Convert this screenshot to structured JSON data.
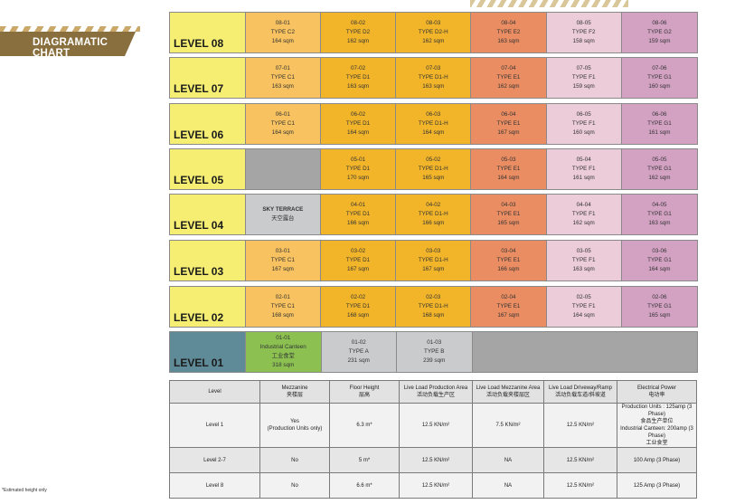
{
  "title": "DIAGRAMATIC CHART",
  "levels": [
    {
      "label": "LEVEL 08",
      "units": [
        {
          "code": "08-01",
          "type": "TYPE C2",
          "area": "164 sqm"
        },
        {
          "code": "08-02",
          "type": "TYPE D2",
          "area": "162 sqm"
        },
        {
          "code": "08-03",
          "type": "TYPE D2-H",
          "area": "162 sqm"
        },
        {
          "code": "08-04",
          "type": "TYPE E2",
          "area": "163 sqm"
        },
        {
          "code": "08-05",
          "type": "TYPE F2",
          "area": "158 sqm"
        },
        {
          "code": "08-06",
          "type": "TYPE G2",
          "area": "159 sqm"
        }
      ]
    },
    {
      "label": "LEVEL 07",
      "units": [
        {
          "code": "07-01",
          "type": "TYPE C1",
          "area": "163 sqm"
        },
        {
          "code": "07-02",
          "type": "TYPE D1",
          "area": "163 sqm"
        },
        {
          "code": "07-03",
          "type": "TYPE D1-H",
          "area": "163 sqm"
        },
        {
          "code": "07-04",
          "type": "TYPE E1",
          "area": "162 sqm"
        },
        {
          "code": "07-05",
          "type": "TYPE F1",
          "area": "159 sqm"
        },
        {
          "code": "07-06",
          "type": "TYPE G1",
          "area": "160 sqm"
        }
      ]
    },
    {
      "label": "LEVEL 06",
      "units": [
        {
          "code": "06-01",
          "type": "TYPE C1",
          "area": "164 sqm"
        },
        {
          "code": "06-02",
          "type": "TYPE D1",
          "area": "164 sqm"
        },
        {
          "code": "06-03",
          "type": "TYPE D1-H",
          "area": "164 sqm"
        },
        {
          "code": "06-04",
          "type": "TYPE E1",
          "area": "167 sqm"
        },
        {
          "code": "06-05",
          "type": "TYPE F1",
          "area": "160 sqm"
        },
        {
          "code": "06-06",
          "type": "TYPE G1",
          "area": "161 sqm"
        }
      ]
    },
    {
      "label": "LEVEL 05",
      "units": [
        {
          "code": "",
          "type": "",
          "area": ""
        },
        {
          "code": "05-01",
          "type": "TYPE D1",
          "area": "170 sqm"
        },
        {
          "code": "05-02",
          "type": "TYPE D1-H",
          "area": "165 sqm"
        },
        {
          "code": "05-03",
          "type": "TYPE E1",
          "area": "164 sqm"
        },
        {
          "code": "05-04",
          "type": "TYPE F1",
          "area": "161 sqm"
        },
        {
          "code": "05-05",
          "type": "TYPE G1",
          "area": "162 sqm"
        }
      ]
    },
    {
      "label": "LEVEL 04",
      "units": [
        {
          "code": "SKY TERRACE",
          "type": "天空露台",
          "area": ""
        },
        {
          "code": "04-01",
          "type": "TYPE D1",
          "area": "166 sqm"
        },
        {
          "code": "04-02",
          "type": "TYPE D1-H",
          "area": "166 sqm"
        },
        {
          "code": "04-03",
          "type": "TYPE E1",
          "area": "165 sqm"
        },
        {
          "code": "04-04",
          "type": "TYPE F1",
          "area": "162 sqm"
        },
        {
          "code": "04-05",
          "type": "TYPE G1",
          "area": "163 sqm"
        }
      ]
    },
    {
      "label": "LEVEL 03",
      "units": [
        {
          "code": "03-01",
          "type": "TYPE C1",
          "area": "167 sqm"
        },
        {
          "code": "03-02",
          "type": "TYPE D1",
          "area": "167 sqm"
        },
        {
          "code": "03-03",
          "type": "TYPE D1-H",
          "area": "167 sqm"
        },
        {
          "code": "03-04",
          "type": "TYPE E1",
          "area": "166 sqm"
        },
        {
          "code": "03-05",
          "type": "TYPE F1",
          "area": "163 sqm"
        },
        {
          "code": "03-06",
          "type": "TYPE G1",
          "area": "164 sqm"
        }
      ]
    },
    {
      "label": "LEVEL 02",
      "units": [
        {
          "code": "02-01",
          "type": "TYPE C1",
          "area": "168 sqm"
        },
        {
          "code": "02-02",
          "type": "TYPE D1",
          "area": "168 sqm"
        },
        {
          "code": "02-03",
          "type": "TYPE D1-H",
          "area": "168 sqm"
        },
        {
          "code": "02-04",
          "type": "TYPE E1",
          "area": "167 sqm"
        },
        {
          "code": "02-05",
          "type": "TYPE F1",
          "area": "164 sqm"
        },
        {
          "code": "02-06",
          "type": "TYPE G1",
          "area": "165 sqm"
        }
      ]
    },
    {
      "label": "LEVEL 01",
      "units": [
        {
          "code": "01-01",
          "type": "Industrial Canteen",
          "sub": "工业食堂",
          "area": "318 sqm"
        },
        {
          "code": "01-02",
          "type": "TYPE A",
          "area": "231 sqm"
        },
        {
          "code": "01-03",
          "type": "TYPE B",
          "area": "239 sqm"
        }
      ]
    }
  ],
  "spec_table": {
    "headers": [
      {
        "en": "Level",
        "zh": ""
      },
      {
        "en": "Mezzanine",
        "zh": "夹楼层"
      },
      {
        "en": "Floor Height",
        "zh": "层高"
      },
      {
        "en": "Live Load Production Area",
        "zh": "活动负载生产区"
      },
      {
        "en": "Live Load Mezzanine Area",
        "zh": "活动负载夹楼层区"
      },
      {
        "en": "Live Load Driveway/Ramp",
        "zh": "活动负载车道/斜坡道"
      },
      {
        "en": "Electrical Power",
        "zh": "电功率"
      }
    ],
    "rows": [
      {
        "level": "Level 1",
        "mezz": "Yes",
        "mezz_note": "(Production Units only)",
        "height": "6.3 m*",
        "prod": "12.5 KN/m²",
        "mezz_load": "7.5 KN/m²",
        "drive": "12.5 KN/m²",
        "power1": "Production Units : 125amp (3 Phase)",
        "power1_zh": "食品生产单位",
        "power2": "Industrial Canteen: 200amp (3 Phase)",
        "power2_zh": "工业食堂"
      },
      {
        "level": "Level 2-7",
        "mezz": "No",
        "height": "5 m*",
        "prod": "12.5 KN/m²",
        "mezz_load": "NA",
        "drive": "12.5 KN/m²",
        "power": "100 Amp (3 Phase)"
      },
      {
        "level": "Level 8",
        "mezz": "No",
        "height": "6.6 m*",
        "prod": "12.5 KN/m²",
        "mezz_load": "NA",
        "drive": "12.5 KN/m²",
        "power": "125 Amp (3 Phase)"
      }
    ]
  },
  "footnote": "*Estimated height only",
  "colors": {
    "level_label": "#f5ee73",
    "type_c": "#f7c25f",
    "type_d": "#f2b52a",
    "type_e": "#ea8d62",
    "type_f": "#ebccd8",
    "type_g": "#d3a2c3",
    "level_01": "#5f8a97",
    "canteen": "#8cc152"
  }
}
